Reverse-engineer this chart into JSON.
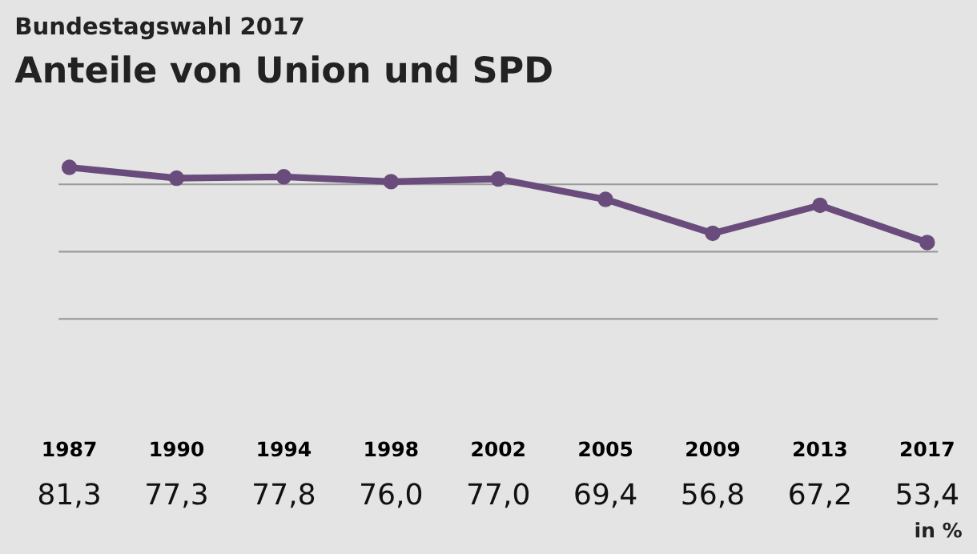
{
  "chart_data": {
    "type": "line",
    "subtitle": "Bundestagswahl 2017",
    "title": "Anteile von Union und SPD",
    "categories": [
      "1987",
      "1990",
      "1994",
      "1998",
      "2002",
      "2005",
      "2009",
      "2013",
      "2017"
    ],
    "series": [
      {
        "color": "#6a4c7c",
        "values": [
          81.3,
          77.3,
          77.8,
          76.0,
          77.0,
          69.4,
          56.8,
          67.2,
          53.4
        ],
        "value_labels": [
          "81,3",
          "77,3",
          "77,8",
          "76,0",
          "77,0",
          "69,4",
          "56,8",
          "67,2",
          "53,4"
        ]
      }
    ],
    "ref_lines": [
      {
        "axis": "y",
        "value": 25,
        "color": "#9a9a9a"
      },
      {
        "axis": "y",
        "value": 50,
        "color": "#9a9a9a"
      },
      {
        "axis": "y",
        "value": 75,
        "color": "#9a9a9a"
      }
    ],
    "tick_labels": "x",
    "marker": "circle",
    "line_style": "solid",
    "annotations": [
      "in %"
    ]
  }
}
